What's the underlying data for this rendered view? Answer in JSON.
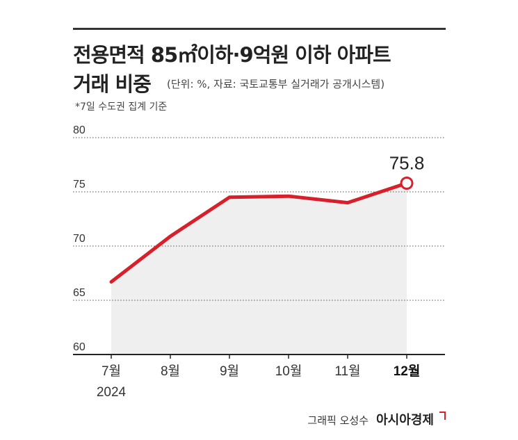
{
  "title_line1": "전용면적 85㎡이하·9억원 이하 아파트",
  "title_line2": "거래 비중",
  "source": "(단위: %, 자료: 국토교통부 실거래가 공개시스템)",
  "note": "*7일 수도권 집계 기준",
  "credit": {
    "by": "그래픽 오성수",
    "logo": "아시아경제"
  },
  "chart_data": {
    "type": "area",
    "categories": [
      "7월",
      "8월",
      "9월",
      "10월",
      "11월",
      "12월"
    ],
    "x_sublabel": "2024",
    "series": [
      {
        "values": [
          66.7,
          70.9,
          74.5,
          74.6,
          74.0,
          75.8
        ]
      }
    ],
    "ylim": [
      60,
      80
    ],
    "yticks": [
      80,
      75,
      70,
      65,
      60
    ],
    "highlight": {
      "index": 5,
      "label": "75.8"
    },
    "grid": true,
    "colors": {
      "line": "#d6202b",
      "fill": "#efefef",
      "grid": "#555555",
      "axis": "#222222",
      "marker_fill": "#ffffff"
    }
  }
}
